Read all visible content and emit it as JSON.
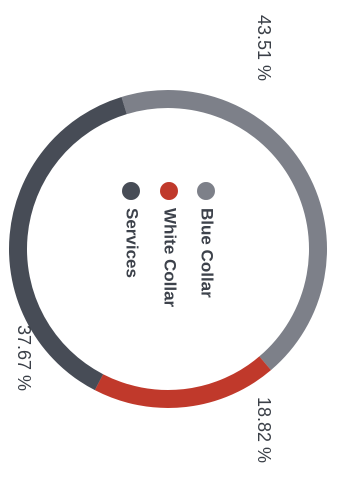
{
  "chart_data": {
    "type": "pie",
    "title": "",
    "donut": true,
    "legend": "center",
    "slices": [
      {
        "label": "Blue Collar",
        "value": 43.51,
        "display": "43.51 %",
        "color": "#7d8089"
      },
      {
        "label": "White Collar",
        "value": 18.82,
        "display": "18.82 %",
        "color": "#c0392b"
      },
      {
        "label": "Services",
        "value": 37.67,
        "display": "37.67 %",
        "color": "#474c56"
      }
    ]
  }
}
